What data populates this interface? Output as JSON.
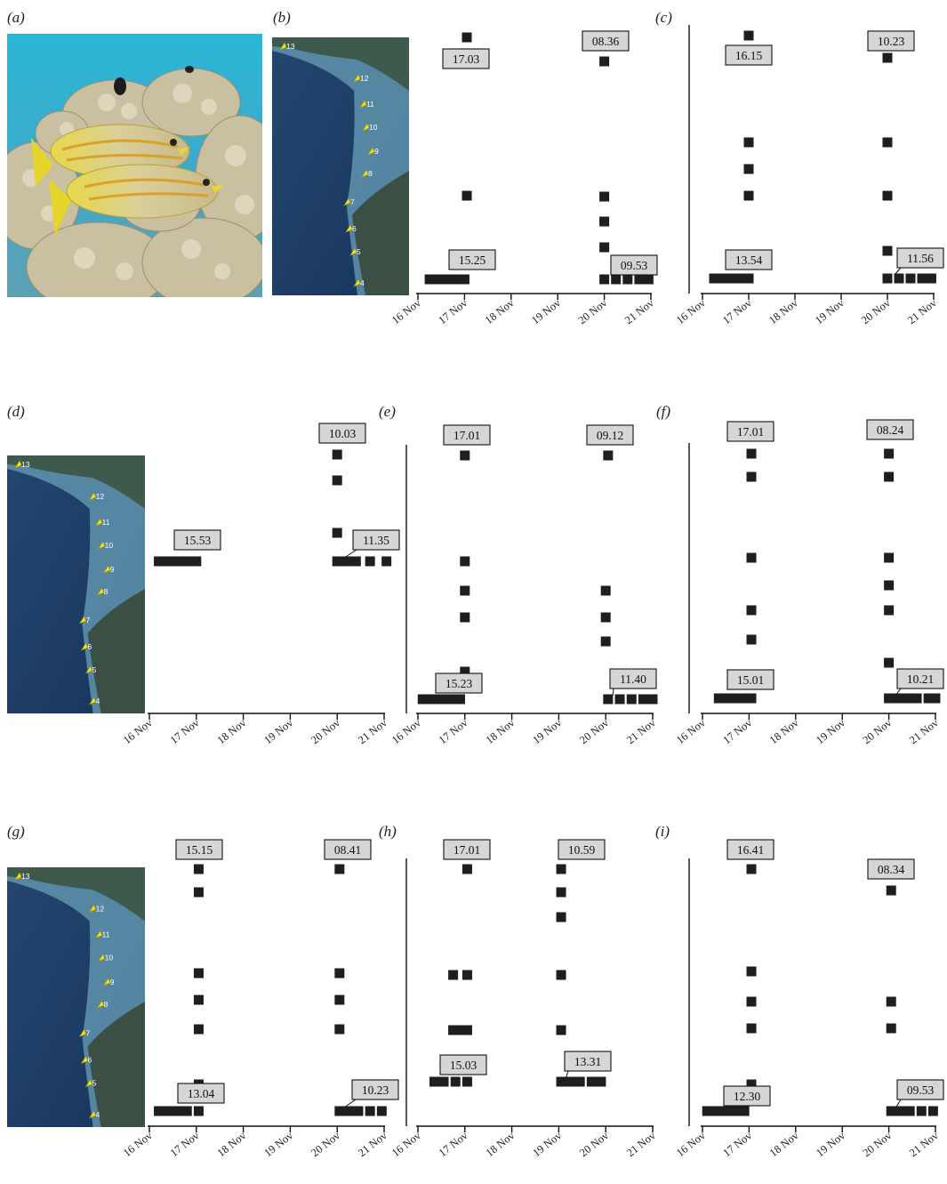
{
  "figure": {
    "panel_letters": [
      "(a)",
      "(b)",
      "(c)",
      "(d)",
      "(e)",
      "(f)",
      "(g)",
      "(h)",
      "(i)"
    ],
    "x_tick_labels": [
      "16 Nov",
      "17 Nov",
      "18 Nov",
      "19 Nov",
      "20 Nov",
      "21 Nov"
    ],
    "map_site_labels": [
      "13",
      "12",
      "11",
      "10",
      "9",
      "8",
      "7",
      "6",
      "5",
      "4"
    ]
  },
  "chart_data": [
    {
      "panel": "(b)",
      "type": "scatter",
      "x_ticks": [
        "16 Nov",
        "17 Nov",
        "18 Nov",
        "19 Nov",
        "20 Nov",
        "21 Nov"
      ],
      "y_axis_visible": false,
      "times": [
        {
          "text": "17.03",
          "day": 17.0
        },
        {
          "text": "08.36",
          "day": 20.0
        },
        {
          "text": "15.25",
          "day": 17.0
        },
        {
          "text": "09.53",
          "day": 20.0
        }
      ]
    },
    {
      "panel": "(c)",
      "type": "scatter",
      "x_ticks": [
        "16 Nov",
        "17 Nov",
        "18 Nov",
        "19 Nov",
        "20 Nov",
        "21 Nov"
      ],
      "y_axis_visible": true,
      "times": [
        {
          "text": "16.15",
          "day": 17.0
        },
        {
          "text": "10.23",
          "day": 20.0
        },
        {
          "text": "13.54",
          "day": 17.0
        },
        {
          "text": "11.56",
          "day": 20.0
        }
      ]
    },
    {
      "panel": "(d)",
      "type": "scatter",
      "x_ticks": [
        "16 Nov",
        "17 Nov",
        "18 Nov",
        "19 Nov",
        "20 Nov",
        "21 Nov"
      ],
      "y_axis_visible": false,
      "times": [
        {
          "text": "10.03",
          "day": 20.0
        },
        {
          "text": "15.53",
          "day": 17.0
        },
        {
          "text": "11.35",
          "day": 20.0
        }
      ]
    },
    {
      "panel": "(e)",
      "type": "scatter",
      "x_ticks": [
        "16 Nov",
        "17 Nov",
        "18 Nov",
        "19 Nov",
        "20 Nov",
        "21 Nov"
      ],
      "y_axis_visible": true,
      "times": [
        {
          "text": "17.01",
          "day": 17.0
        },
        {
          "text": "09.12",
          "day": 20.0
        },
        {
          "text": "15.23",
          "day": 17.0
        },
        {
          "text": "11.40",
          "day": 20.0
        }
      ]
    },
    {
      "panel": "(f)",
      "type": "scatter",
      "x_ticks": [
        "16 Nov",
        "17 Nov",
        "18 Nov",
        "19 Nov",
        "20 Nov",
        "21 Nov"
      ],
      "y_axis_visible": true,
      "times": [
        {
          "text": "17.01",
          "day": 17.0
        },
        {
          "text": "08.24",
          "day": 20.0
        },
        {
          "text": "15.01",
          "day": 17.0
        },
        {
          "text": "10.21",
          "day": 20.0
        }
      ]
    },
    {
      "panel": "(g)",
      "type": "scatter",
      "x_ticks": [
        "16 Nov",
        "17 Nov",
        "18 Nov",
        "19 Nov",
        "20 Nov",
        "21 Nov"
      ],
      "y_axis_visible": false,
      "times": [
        {
          "text": "15.15",
          "day": 17.0
        },
        {
          "text": "08.41",
          "day": 20.0
        },
        {
          "text": "13.04",
          "day": 17.0
        },
        {
          "text": "10.23",
          "day": 20.0
        }
      ]
    },
    {
      "panel": "(h)",
      "type": "scatter",
      "x_ticks": [
        "16 Nov",
        "17 Nov",
        "18 Nov",
        "19 Nov",
        "20 Nov",
        "21 Nov"
      ],
      "y_axis_visible": true,
      "times": [
        {
          "text": "17.01",
          "day": 17.0
        },
        {
          "text": "10.59",
          "day": 19.0
        },
        {
          "text": "15.03",
          "day": 17.0
        },
        {
          "text": "13.31",
          "day": 19.0
        }
      ]
    },
    {
      "panel": "(i)",
      "type": "scatter",
      "x_ticks": [
        "16 Nov",
        "17 Nov",
        "18 Nov",
        "19 Nov",
        "20 Nov",
        "21 Nov"
      ],
      "y_axis_visible": true,
      "times": [
        {
          "text": "16.41",
          "day": 17.0
        },
        {
          "text": "08.34",
          "day": 20.0
        },
        {
          "text": "12.30",
          "day": 17.0
        },
        {
          "text": "09.53",
          "day": 20.0
        }
      ]
    }
  ],
  "detections": [
    {
      "panel": "(b)",
      "points": [
        [
          17.05,
          1
        ],
        [
          20.0,
          2
        ],
        [
          17.05,
          3
        ],
        [
          20.0,
          4
        ],
        [
          20.0,
          5
        ],
        [
          20.0,
          6
        ],
        [
          16.25,
          7
        ],
        [
          16.45,
          7
        ],
        [
          16.65,
          7
        ],
        [
          16.85,
          7
        ],
        [
          17.0,
          7
        ],
        [
          20.0,
          7
        ],
        [
          20.25,
          7
        ],
        [
          20.5,
          7
        ],
        [
          20.75,
          7
        ],
        [
          20.95,
          7
        ]
      ]
    },
    {
      "panel": "(c)",
      "points": [
        [
          17.0,
          1
        ],
        [
          20.0,
          2
        ],
        [
          17.0,
          3
        ],
        [
          20.0,
          3
        ],
        [
          17.0,
          4
        ],
        [
          17.0,
          5
        ],
        [
          20.0,
          5
        ],
        [
          20.0,
          6
        ],
        [
          16.25,
          7
        ],
        [
          16.45,
          7
        ],
        [
          16.65,
          7
        ],
        [
          16.85,
          7
        ],
        [
          17.0,
          7
        ],
        [
          20.0,
          7
        ],
        [
          20.25,
          7
        ],
        [
          20.5,
          7
        ],
        [
          20.75,
          7
        ],
        [
          20.95,
          7
        ]
      ]
    },
    {
      "panel": "(d)",
      "points": [
        [
          20.0,
          1
        ],
        [
          20.0,
          2
        ],
        [
          20.0,
          3
        ],
        [
          16.2,
          4
        ],
        [
          16.4,
          4
        ],
        [
          16.6,
          4
        ],
        [
          16.8,
          4
        ],
        [
          17.0,
          4
        ],
        [
          20.0,
          4
        ],
        [
          20.2,
          4
        ],
        [
          20.4,
          4
        ],
        [
          20.7,
          4
        ],
        [
          21.05,
          4
        ]
      ]
    },
    {
      "panel": "(e)",
      "points": [
        [
          17.0,
          1
        ],
        [
          20.05,
          1
        ],
        [
          17.0,
          2
        ],
        [
          17.0,
          3
        ],
        [
          20.0,
          3
        ],
        [
          17.0,
          4
        ],
        [
          20.0,
          4
        ],
        [
          20.0,
          5
        ],
        [
          17.0,
          6
        ],
        [
          16.1,
          7
        ],
        [
          16.3,
          7
        ],
        [
          16.5,
          7
        ],
        [
          16.7,
          7
        ],
        [
          16.9,
          7
        ],
        [
          20.05,
          7
        ],
        [
          20.3,
          7
        ],
        [
          20.55,
          7
        ],
        [
          20.8,
          7
        ],
        [
          21.0,
          7
        ]
      ]
    },
    {
      "panel": "(f)",
      "points": [
        [
          17.05,
          1
        ],
        [
          20.0,
          1
        ],
        [
          17.05,
          2
        ],
        [
          20.0,
          2
        ],
        [
          17.05,
          3
        ],
        [
          20.0,
          3
        ],
        [
          20.0,
          4
        ],
        [
          17.05,
          5
        ],
        [
          20.0,
          5
        ],
        [
          17.05,
          6
        ],
        [
          20.0,
          7
        ],
        [
          16.35,
          8
        ],
        [
          16.55,
          8
        ],
        [
          16.75,
          8
        ],
        [
          16.95,
          8
        ],
        [
          17.05,
          8
        ],
        [
          20.0,
          8
        ],
        [
          20.2,
          8
        ],
        [
          20.4,
          8
        ],
        [
          20.6,
          8
        ],
        [
          20.85,
          8
        ],
        [
          21.0,
          8
        ]
      ]
    },
    {
      "panel": "(g)",
      "points": [
        [
          17.05,
          1
        ],
        [
          20.05,
          1
        ],
        [
          17.05,
          2
        ],
        [
          17.05,
          3
        ],
        [
          20.05,
          3
        ],
        [
          17.05,
          4
        ],
        [
          20.05,
          4
        ],
        [
          17.05,
          5
        ],
        [
          20.05,
          5
        ],
        [
          17.05,
          6
        ],
        [
          16.2,
          7
        ],
        [
          16.4,
          7
        ],
        [
          16.6,
          7
        ],
        [
          16.8,
          7
        ],
        [
          17.05,
          7
        ],
        [
          20.05,
          7
        ],
        [
          20.25,
          7
        ],
        [
          20.45,
          7
        ],
        [
          20.7,
          7
        ],
        [
          20.95,
          7
        ]
      ]
    },
    {
      "panel": "(h)",
      "points": [
        [
          17.05,
          1
        ],
        [
          19.05,
          1
        ],
        [
          19.05,
          2
        ],
        [
          19.05,
          3
        ],
        [
          16.75,
          4
        ],
        [
          17.05,
          4
        ],
        [
          19.05,
          4
        ],
        [
          16.75,
          5
        ],
        [
          16.95,
          5
        ],
        [
          17.05,
          5
        ],
        [
          19.05,
          5
        ],
        [
          16.35,
          6
        ],
        [
          16.55,
          6
        ],
        [
          16.8,
          6
        ],
        [
          17.05,
          6
        ],
        [
          19.05,
          6
        ],
        [
          19.25,
          6
        ],
        [
          19.45,
          6
        ],
        [
          19.7,
          6
        ],
        [
          19.9,
          6
        ]
      ]
    },
    {
      "panel": "(i)",
      "points": [
        [
          17.05,
          1
        ],
        [
          20.05,
          2
        ],
        [
          17.05,
          3
        ],
        [
          17.05,
          4
        ],
        [
          20.05,
          4
        ],
        [
          17.05,
          5
        ],
        [
          20.05,
          5
        ],
        [
          17.05,
          6
        ],
        [
          16.1,
          7
        ],
        [
          16.3,
          7
        ],
        [
          16.5,
          7
        ],
        [
          16.7,
          7
        ],
        [
          16.9,
          7
        ],
        [
          20.05,
          7
        ],
        [
          20.25,
          7
        ],
        [
          20.45,
          7
        ],
        [
          20.7,
          7
        ],
        [
          20.95,
          7
        ]
      ]
    }
  ],
  "colors": {
    "marker": "#1e1e1e",
    "label_box": "#d6d6d6",
    "axis": "#111111",
    "site_pin": "#f4e40a"
  }
}
